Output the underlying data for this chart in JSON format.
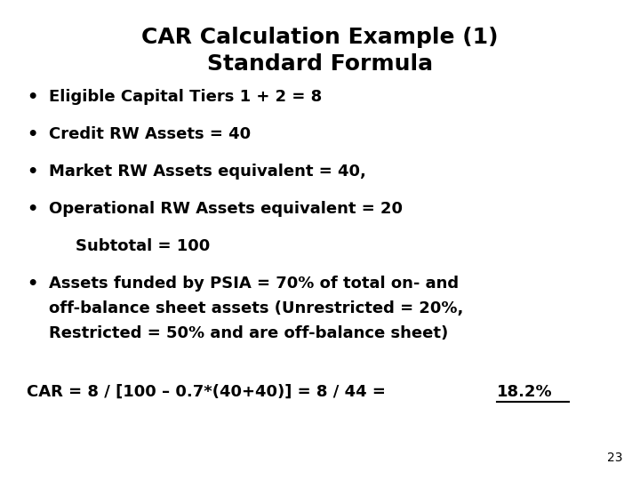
{
  "title_line1": "CAR Calculation Example (1)",
  "title_line2": "Standard Formula",
  "bullet1": "Eligible Capital Tiers 1 + 2 = 8",
  "bullet2": "Credit RW Assets = 40",
  "bullet3": "Market RW Assets equivalent = 40,",
  "bullet4": "Operational RW Assets equivalent = 20",
  "subtotal": "Subtotal = 100",
  "bullet5_line1": "Assets funded by PSIA = 70% of total on- and",
  "bullet5_line2": "off-balance sheet assets (Unrestricted = 20%,",
  "bullet5_line3": "Restricted = 50% and are off-balance sheet)",
  "car_formula_plain": "CAR = 8 / [100 – 0.7*(40+40)] = 8 / 44 = ",
  "car_formula_underlined": "18.2%",
  "page_number": "23",
  "bg_color": "#ffffff",
  "text_color": "#000000",
  "title_fontsize": 18,
  "body_fontsize": 13,
  "car_fontsize": 13,
  "page_fontsize": 10
}
